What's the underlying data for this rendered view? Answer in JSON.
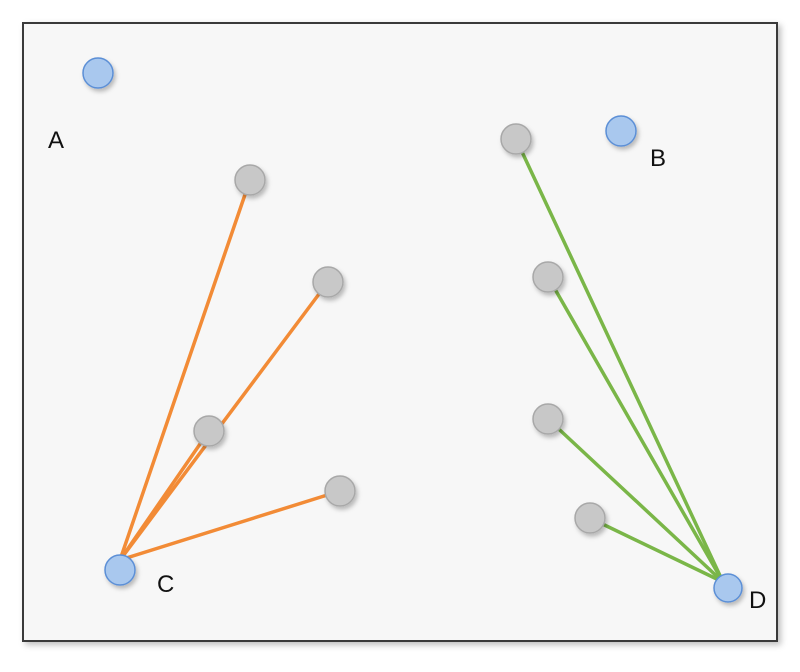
{
  "diagram": {
    "labels": {
      "A": "A",
      "B": "B",
      "C": "C",
      "D": "D"
    },
    "colors": {
      "labeled_node_fill": "#a9c8ee",
      "labeled_node_stroke": "#5b8fd6",
      "neighbor_node_fill": "#c8c8c8",
      "neighbor_node_stroke": "#a8a8a8",
      "edge_group_c": "#f28b36",
      "edge_group_d": "#7ab648"
    },
    "edge_groups": [
      {
        "id": "c",
        "hub": "C",
        "neighbor_count": 4
      },
      {
        "id": "d",
        "hub": "D",
        "neighbor_count": 4
      }
    ],
    "unconnected_nodes": [
      "A",
      "B"
    ]
  }
}
